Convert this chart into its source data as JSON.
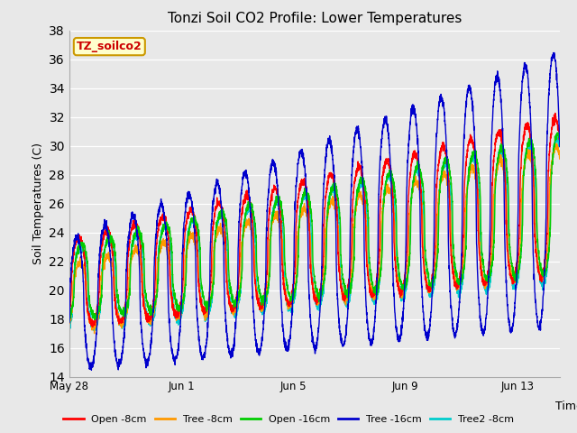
{
  "title": "Tonzi Soil CO2 Profile: Lower Temperatures",
  "xlabel": "Time",
  "ylabel": "Soil Temperatures (C)",
  "ylim": [
    14,
    38
  ],
  "yticks": [
    14,
    16,
    18,
    20,
    22,
    24,
    26,
    28,
    30,
    32,
    34,
    36,
    38
  ],
  "background_color": "#e8e8e8",
  "legend_label": "TZ_soilco2",
  "legend_box_color": "#ffffcc",
  "legend_box_edge": "#cc9900",
  "series": [
    {
      "label": "Open -8cm",
      "color": "#ff0000"
    },
    {
      "label": "Tree -8cm",
      "color": "#ff9900"
    },
    {
      "label": "Open -16cm",
      "color": "#00cc00"
    },
    {
      "label": "Tree -16cm",
      "color": "#0000cc"
    },
    {
      "label": "Tree2 -8cm",
      "color": "#00cccc"
    }
  ],
  "x_tick_labels": [
    "May 28",
    "Jun 1",
    "Jun 5",
    "Jun 9",
    "Jun 13"
  ],
  "x_tick_positions": [
    0,
    4,
    8,
    12,
    16
  ],
  "total_days": 17.5
}
